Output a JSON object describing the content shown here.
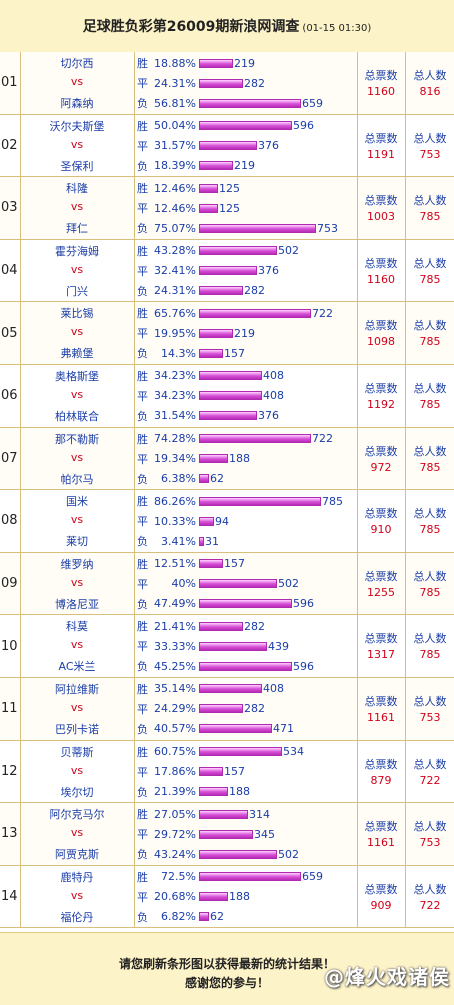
{
  "header": {
    "title": "足球胜负彩第26009期新浪网调查",
    "timestamp": "(01-15 01:30)"
  },
  "labels": {
    "vs": "vs",
    "win": "胜",
    "draw": "平",
    "loss": "负",
    "total_votes": "总票数",
    "total_people": "总人数"
  },
  "colors": {
    "team": "#1a3da8",
    "vs": "#d0021b",
    "bar": "#d64fd6",
    "header_bg": "#fdf3c8"
  },
  "matches": [
    {
      "no": "01",
      "home": "切尔西",
      "away": "阿森纳",
      "win_pct": "18.88%",
      "win": 219,
      "draw_pct": "24.31%",
      "draw": 282,
      "loss_pct": "56.81%",
      "loss": 659,
      "total_votes": "1160",
      "total_people": "816"
    },
    {
      "no": "02",
      "home": "沃尔夫斯堡",
      "away": "圣保利",
      "win_pct": "50.04%",
      "win": 596,
      "draw_pct": "31.57%",
      "draw": 376,
      "loss_pct": "18.39%",
      "loss": 219,
      "total_votes": "1191",
      "total_people": "753"
    },
    {
      "no": "03",
      "home": "科隆",
      "away": "拜仁",
      "win_pct": "12.46%",
      "win": 125,
      "draw_pct": "12.46%",
      "draw": 125,
      "loss_pct": "75.07%",
      "loss": 753,
      "total_votes": "1003",
      "total_people": "785"
    },
    {
      "no": "04",
      "home": "霍芬海姆",
      "away": "门兴",
      "win_pct": "43.28%",
      "win": 502,
      "draw_pct": "32.41%",
      "draw": 376,
      "loss_pct": "24.31%",
      "loss": 282,
      "total_votes": "1160",
      "total_people": "785"
    },
    {
      "no": "05",
      "home": "莱比锡",
      "away": "弗赖堡",
      "win_pct": "65.76%",
      "win": 722,
      "draw_pct": "19.95%",
      "draw": 219,
      "loss_pct": "14.3%",
      "loss": 157,
      "total_votes": "1098",
      "total_people": "785"
    },
    {
      "no": "06",
      "home": "奥格斯堡",
      "away": "柏林联合",
      "win_pct": "34.23%",
      "win": 408,
      "draw_pct": "34.23%",
      "draw": 408,
      "loss_pct": "31.54%",
      "loss": 376,
      "total_votes": "1192",
      "total_people": "785"
    },
    {
      "no": "07",
      "home": "那不勒斯",
      "away": "帕尔马",
      "win_pct": "74.28%",
      "win": 722,
      "draw_pct": "19.34%",
      "draw": 188,
      "loss_pct": "6.38%",
      "loss": 62,
      "total_votes": "972",
      "total_people": "785"
    },
    {
      "no": "08",
      "home": "国米",
      "away": "莱切",
      "win_pct": "86.26%",
      "win": 785,
      "draw_pct": "10.33%",
      "draw": 94,
      "loss_pct": "3.41%",
      "loss": 31,
      "total_votes": "910",
      "total_people": "785"
    },
    {
      "no": "09",
      "home": "维罗纳",
      "away": "博洛尼亚",
      "win_pct": "12.51%",
      "win": 157,
      "draw_pct": "40%",
      "draw": 502,
      "loss_pct": "47.49%",
      "loss": 596,
      "total_votes": "1255",
      "total_people": "785"
    },
    {
      "no": "10",
      "home": "科莫",
      "away": "AC米兰",
      "win_pct": "21.41%",
      "win": 282,
      "draw_pct": "33.33%",
      "draw": 439,
      "loss_pct": "45.25%",
      "loss": 596,
      "total_votes": "1317",
      "total_people": "785"
    },
    {
      "no": "11",
      "home": "阿拉维斯",
      "away": "巴列卡诺",
      "win_pct": "35.14%",
      "win": 408,
      "draw_pct": "24.29%",
      "draw": 282,
      "loss_pct": "40.57%",
      "loss": 471,
      "total_votes": "1161",
      "total_people": "753"
    },
    {
      "no": "12",
      "home": "贝蒂斯",
      "away": "埃尔切",
      "win_pct": "60.75%",
      "win": 534,
      "draw_pct": "17.86%",
      "draw": 157,
      "loss_pct": "21.39%",
      "loss": 188,
      "total_votes": "879",
      "total_people": "722"
    },
    {
      "no": "13",
      "home": "阿尔克马尔",
      "away": "阿贾克斯",
      "win_pct": "27.05%",
      "win": 314,
      "draw_pct": "29.72%",
      "draw": 345,
      "loss_pct": "43.24%",
      "loss": 502,
      "total_votes": "1161",
      "total_people": "753"
    },
    {
      "no": "14",
      "home": "鹿特丹",
      "away": "福伦丹",
      "win_pct": "72.5%",
      "win": 659,
      "draw_pct": "20.68%",
      "draw": 188,
      "loss_pct": "6.82%",
      "loss": 62,
      "total_votes": "909",
      "total_people": "722"
    }
  ],
  "footer": {
    "line1": "请您刷新条形图以获得最新的统计结果！",
    "line2": "感谢您的参与！",
    "watermark": "@烽火戏诸侯"
  }
}
